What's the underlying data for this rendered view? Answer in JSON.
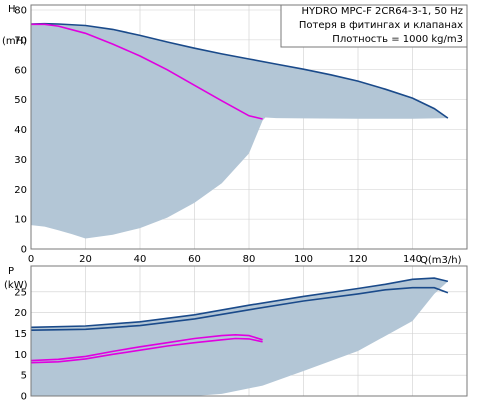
{
  "chart_data": [
    {
      "type": "line",
      "title_lines": [
        "HYDRO MPC-F 2CR64-3-1, 50 Hz",
        "Потеря в фитингах и клапанах",
        "Плотность = 1000 kg/m3"
      ],
      "ylabel": "H",
      "yunit": "(mH)",
      "xlabel": "Q(m3/h)",
      "xlim": [
        0,
        160
      ],
      "ylim": [
        0,
        80
      ],
      "xticks": [
        0,
        20,
        40,
        60,
        80,
        100,
        120,
        140
      ],
      "yticks": [
        0,
        10,
        20,
        30,
        40,
        50,
        60,
        70,
        80
      ],
      "grid": true,
      "colors": {
        "region": "#b3c6d6",
        "blue": "#1a4a8a",
        "magenta": "#e000e0"
      },
      "region": {
        "upper": [
          [
            0,
            75.3
          ],
          [
            5,
            75.4
          ],
          [
            10,
            75.3
          ],
          [
            20,
            74.8
          ],
          [
            30,
            73.5
          ],
          [
            40,
            71.5
          ],
          [
            50,
            69.3
          ],
          [
            60,
            67.2
          ],
          [
            70,
            65.3
          ],
          [
            80,
            63.6
          ],
          [
            90,
            61.9
          ],
          [
            100,
            60.2
          ],
          [
            110,
            58.3
          ],
          [
            120,
            56.2
          ],
          [
            130,
            53.5
          ],
          [
            140,
            50.5
          ],
          [
            148,
            47.0
          ],
          [
            153,
            43.8
          ]
        ],
        "lower": [
          [
            153,
            43.8
          ],
          [
            140,
            43.6
          ],
          [
            120,
            43.6
          ],
          [
            100,
            43.7
          ],
          [
            90,
            43.8
          ],
          [
            86,
            44.0
          ],
          [
            85,
            43.0
          ],
          [
            80,
            32.0
          ],
          [
            70,
            22.0
          ],
          [
            60,
            15.5
          ],
          [
            50,
            10.5
          ],
          [
            40,
            7.0
          ],
          [
            30,
            4.8
          ],
          [
            20,
            3.5
          ],
          [
            15,
            5.0
          ],
          [
            10,
            6.3
          ],
          [
            5,
            7.5
          ],
          [
            0,
            8.0
          ]
        ]
      },
      "series": [
        {
          "color": "blue",
          "x": [
            0,
            5,
            10,
            20,
            30,
            40,
            50,
            60,
            70,
            80,
            90,
            100,
            110,
            120,
            130,
            140,
            148,
            153
          ],
          "y": [
            75.3,
            75.4,
            75.3,
            74.8,
            73.5,
            71.5,
            69.3,
            67.2,
            65.3,
            63.6,
            61.9,
            60.2,
            58.3,
            56.2,
            53.5,
            50.5,
            47.0,
            43.8
          ]
        },
        {
          "color": "magenta",
          "x": [
            0,
            5,
            10,
            20,
            30,
            40,
            50,
            60,
            70,
            80,
            85
          ],
          "y": [
            75.2,
            75.2,
            74.6,
            72.2,
            68.6,
            64.6,
            60.0,
            54.8,
            49.6,
            44.6,
            43.5
          ]
        }
      ]
    },
    {
      "type": "line",
      "ylabel": "P",
      "yunit": "(kW)",
      "xlim": [
        0,
        160
      ],
      "ylim": [
        0,
        30
      ],
      "yticks": [
        0,
        5,
        10,
        15,
        20,
        25
      ],
      "grid": true,
      "colors": {
        "region": "#b3c6d6",
        "blue": "#1a4a8a",
        "magenta": "#e000e0"
      },
      "region": {
        "upper": [
          [
            0,
            16.5
          ],
          [
            20,
            16.8
          ],
          [
            40,
            17.8
          ],
          [
            60,
            19.5
          ],
          [
            80,
            21.8
          ],
          [
            100,
            23.9
          ],
          [
            120,
            25.8
          ],
          [
            130,
            26.8
          ],
          [
            140,
            28.0
          ],
          [
            148,
            28.3
          ],
          [
            153,
            27.5
          ]
        ],
        "lower": [
          [
            153,
            27.5
          ],
          [
            148,
            24.5
          ],
          [
            140,
            18.0
          ],
          [
            120,
            10.8
          ],
          [
            100,
            6.0
          ],
          [
            85,
            2.5
          ],
          [
            70,
            0.5
          ],
          [
            60,
            0.0
          ],
          [
            0,
            0.0
          ]
        ]
      },
      "series": [
        {
          "color": "blue",
          "x": [
            0,
            20,
            40,
            60,
            80,
            100,
            120,
            130,
            140,
            148,
            153
          ],
          "y": [
            16.5,
            16.8,
            17.8,
            19.5,
            21.8,
            23.9,
            25.8,
            26.8,
            28.0,
            28.3,
            27.5
          ]
        },
        {
          "color": "blue",
          "x": [
            0,
            20,
            40,
            60,
            80,
            100,
            120,
            130,
            140,
            148,
            153
          ],
          "y": [
            15.8,
            16.0,
            16.9,
            18.5,
            20.7,
            22.8,
            24.5,
            25.5,
            26.0,
            26.0,
            24.8
          ]
        },
        {
          "color": "magenta",
          "x": [
            0,
            10,
            20,
            30,
            40,
            50,
            60,
            70,
            75,
            80,
            85
          ],
          "y": [
            8.5,
            8.8,
            9.5,
            10.7,
            11.8,
            12.8,
            13.8,
            14.5,
            14.7,
            14.5,
            13.5
          ]
        },
        {
          "color": "magenta",
          "x": [
            0,
            10,
            20,
            30,
            40,
            50,
            60,
            70,
            75,
            80,
            85
          ],
          "y": [
            8.0,
            8.2,
            8.9,
            10.0,
            11.0,
            12.0,
            12.8,
            13.5,
            13.8,
            13.7,
            13.0
          ]
        }
      ]
    }
  ]
}
